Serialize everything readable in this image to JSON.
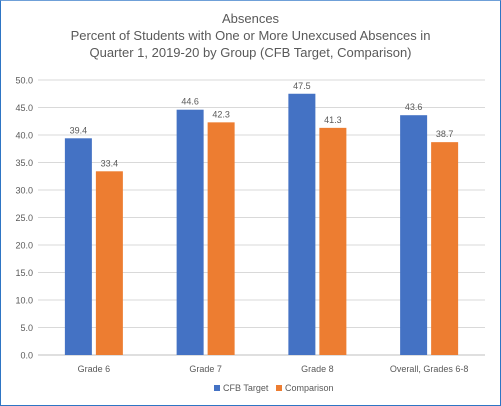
{
  "chart_data": {
    "type": "bar",
    "title_lines": [
      "Absences",
      "Percent of Students with One or More Unexcused Absences in",
      "Quarter 1, 2019-20 by Group (CFB Target, Comparison)"
    ],
    "categories": [
      "Grade 6",
      "Grade 7",
      "Grade 8",
      "Overall, Grades 6-8"
    ],
    "series": [
      {
        "name": "CFB Target",
        "color": "#4472c4",
        "values": [
          39.4,
          44.6,
          47.5,
          43.6
        ]
      },
      {
        "name": "Comparison",
        "color": "#ed7d31",
        "values": [
          33.4,
          42.3,
          41.3,
          38.7
        ]
      }
    ],
    "ylim": [
      0,
      50
    ],
    "yticks": [
      "0.0",
      "5.0",
      "10.0",
      "15.0",
      "20.0",
      "25.0",
      "30.0",
      "35.0",
      "40.0",
      "45.0",
      "50.0"
    ],
    "grid": true,
    "legend_position": "bottom",
    "data_labels": true
  }
}
